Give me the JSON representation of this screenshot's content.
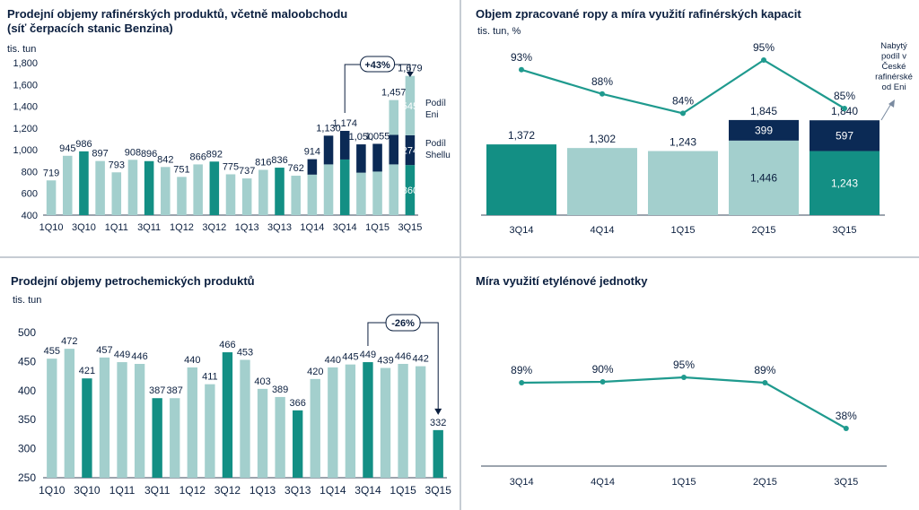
{
  "colors": {
    "light": "#a3cfcd",
    "teal": "#138f84",
    "navy": "#0b2a55",
    "text": "#0b1f3f",
    "line": "#1f9a8e"
  },
  "chart_data": [
    {
      "type": "bar",
      "title": "Prodejní objemy rafinérských produktů, včetně maloobchodu",
      "subtitle": "(síť čerpacích stanic Benzina)",
      "ylabel": "tis. tun",
      "ylim": [
        400,
        1800
      ],
      "yticks": [
        "400",
        "600",
        "800",
        "1,000",
        "1,200",
        "1,400",
        "1,600",
        "1,800"
      ],
      "xtick_labels": [
        "1Q10",
        "3Q10",
        "1Q11",
        "3Q11",
        "1Q12",
        "3Q12",
        "1Q13",
        "3Q13",
        "1Q14",
        "3Q14",
        "1Q15",
        "3Q15"
      ],
      "categories": [
        "1Q10",
        "2Q10",
        "3Q10",
        "4Q10",
        "1Q11",
        "2Q11",
        "3Q11",
        "4Q11",
        "1Q12",
        "2Q12",
        "3Q12",
        "4Q12",
        "1Q13",
        "2Q13",
        "3Q13",
        "4Q13",
        "1Q14",
        "2Q14",
        "3Q14",
        "4Q14",
        "1Q15",
        "2Q15",
        "3Q15"
      ],
      "series": [
        {
          "name": "",
          "values": [
            719,
            945,
            986,
            897,
            793,
            908,
            896,
            842,
            751,
            866,
            892,
            775,
            737,
            816,
            836,
            762,
            772,
            866,
            911,
            790,
            800,
            866,
            860
          ]
        },
        {
          "name": "Podíl Shellu",
          "values": [
            0,
            0,
            0,
            0,
            0,
            0,
            0,
            0,
            0,
            0,
            0,
            0,
            0,
            0,
            0,
            0,
            142,
            264,
            263,
            260,
            255,
            271,
            274
          ]
        },
        {
          "name": "Podíl Eni",
          "values": [
            0,
            0,
            0,
            0,
            0,
            0,
            0,
            0,
            0,
            0,
            0,
            0,
            0,
            0,
            0,
            0,
            0,
            0,
            0,
            0,
            0,
            320,
            545
          ]
        }
      ],
      "highlight_categories": [
        "3Q10",
        "3Q11",
        "3Q12",
        "3Q13",
        "3Q14",
        "3Q15"
      ],
      "data_labels": [
        "719",
        "945",
        "986",
        "897",
        "793",
        "908",
        "896",
        "842",
        "751",
        "866",
        "892",
        "775",
        "737",
        "816",
        "836",
        "762",
        "914",
        "1,130",
        "1,174",
        "1,050",
        "1,055",
        "1,457",
        "1,679"
      ],
      "segment_labels": {
        "eni": "545",
        "shell": "274",
        "base": "860"
      },
      "legend": {
        "eni": "Podíl\nEni",
        "shell": "Podíl\nShellu"
      },
      "annotation": "+43%"
    },
    {
      "type": "bar",
      "title": "Objem zpracované ropy a míra využití rafinérských kapacit",
      "ylabel": "tis. tun, %",
      "categories": [
        "3Q14",
        "4Q14",
        "1Q15",
        "2Q15",
        "3Q15"
      ],
      "series": [
        {
          "name": "",
          "values": [
            1372,
            1302,
            1243,
            1446,
            1243
          ]
        },
        {
          "name": "",
          "values": [
            0,
            0,
            0,
            399,
            597
          ]
        }
      ],
      "totals": [
        "1,372",
        "1,302",
        "1,243",
        "1,845",
        "1,840"
      ],
      "segment_labels": [
        {
          "base": "",
          "top": ""
        },
        {
          "base": "",
          "top": ""
        },
        {
          "base": "",
          "top": ""
        },
        {
          "base": "1,446",
          "top": "399"
        },
        {
          "base": "1,243",
          "top": "597"
        }
      ],
      "line_series": {
        "values": [
          93,
          88,
          84,
          95,
          85
        ],
        "labels": [
          "93%",
          "88%",
          "84%",
          "95%",
          "85%"
        ]
      },
      "annotation": "Nabytý\npodíl v\nČeské\nrafinérské\nod Eni"
    },
    {
      "type": "bar",
      "title": "Prodejní objemy petrochemických produktů",
      "ylabel": "tis. tun",
      "ylim": [
        250,
        500
      ],
      "yticks": [
        "250",
        "300",
        "350",
        "400",
        "450",
        "500"
      ],
      "xtick_labels": [
        "1Q10",
        "3Q10",
        "1Q11",
        "3Q11",
        "1Q12",
        "3Q12",
        "1Q13",
        "3Q13",
        "1Q14",
        "3Q14",
        "1Q15",
        "3Q15"
      ],
      "categories": [
        "1Q10",
        "2Q10",
        "3Q10",
        "4Q10",
        "1Q11",
        "2Q11",
        "3Q11",
        "4Q11",
        "1Q12",
        "2Q12",
        "3Q12",
        "4Q12",
        "1Q13",
        "2Q13",
        "3Q13",
        "4Q13",
        "1Q14",
        "2Q14",
        "3Q14",
        "4Q14",
        "1Q15",
        "2Q15",
        "3Q15"
      ],
      "series": [
        {
          "name": "",
          "values": [
            455,
            472,
            421,
            457,
            449,
            446,
            387,
            387,
            440,
            411,
            466,
            453,
            403,
            389,
            366,
            420,
            440,
            445,
            449,
            439,
            446,
            442,
            332
          ]
        }
      ],
      "highlight_categories": [
        "3Q10",
        "3Q11",
        "3Q12",
        "3Q13",
        "3Q14",
        "3Q15"
      ],
      "data_labels": [
        "455",
        "472",
        "421",
        "457",
        "449",
        "446",
        "387",
        "387",
        "440",
        "411",
        "466",
        "453",
        "403",
        "389",
        "366",
        "420",
        "440",
        "445",
        "449",
        "439",
        "446",
        "442",
        "332"
      ],
      "annotation": "-26%"
    },
    {
      "type": "line",
      "title": "Míra využití etylénové jednotky",
      "categories": [
        "3Q14",
        "4Q14",
        "1Q15",
        "2Q15",
        "3Q15"
      ],
      "series": [
        {
          "name": "",
          "values": [
            89,
            90,
            95,
            89,
            38
          ]
        }
      ],
      "labels": [
        "89%",
        "90%",
        "95%",
        "89%",
        "38%"
      ]
    }
  ]
}
